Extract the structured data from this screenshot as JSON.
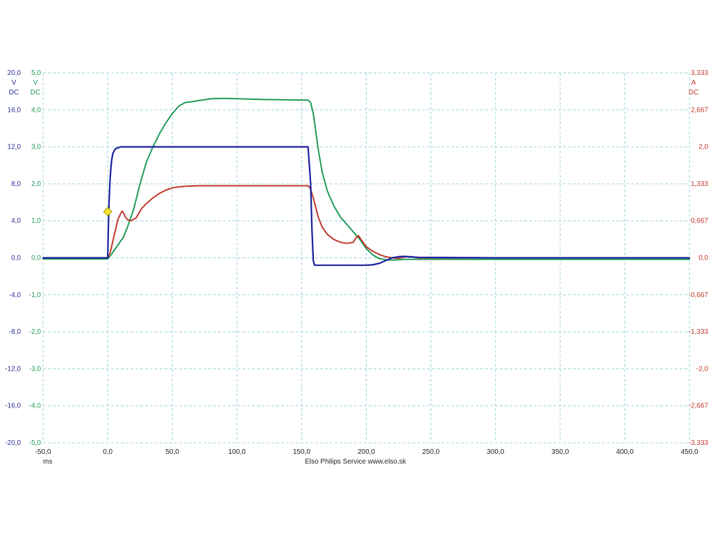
{
  "footer": {
    "credit": "Elso Philips Service  www.elso.sk"
  },
  "chart_data": {
    "type": "line",
    "title": "",
    "grid": true,
    "grid_color": "#9ed3e0",
    "xlabel": "ms",
    "xlim": [
      -50,
      450
    ],
    "x_ticks": [
      "-50,0",
      "0,0",
      "50,0",
      "100,0",
      "150,0",
      "200,0",
      "250,0",
      "300,0",
      "350,0",
      "400,0",
      "450,0"
    ],
    "axes": [
      {
        "id": "blue",
        "side": "left-outer",
        "color": "#2b2f9c",
        "unit": "V",
        "coupling": "DC",
        "range": [
          -20,
          20
        ],
        "ticks": [
          "20,0",
          "16,0",
          "12,0",
          "8,0",
          "4,0",
          "0,0",
          "-4,0",
          "-8,0",
          "-12,0",
          "-16,0",
          "-20,0"
        ]
      },
      {
        "id": "green",
        "side": "left-inner",
        "color": "#1f9a57",
        "unit": "V",
        "coupling": "DC",
        "range": [
          -5,
          5
        ],
        "ticks": [
          "5,0",
          "4,0",
          "3,0",
          "2,0",
          "1,0",
          "0,0",
          "-1,0",
          "-2,0",
          "-3,0",
          "-4,0",
          "-5,0"
        ]
      },
      {
        "id": "red",
        "side": "right",
        "color": "#c0392b",
        "unit": "A",
        "coupling": "DC",
        "range": [
          -3.333,
          3.333
        ],
        "ticks": [
          "3,333",
          "2,667",
          "2,0",
          "1,333",
          "0,667",
          "0,0",
          "-0,667",
          "-1,333",
          "-2,0",
          "-2,667",
          "-3,333"
        ]
      }
    ],
    "series": [
      {
        "id": "blue",
        "axis": "blue",
        "color": "#1a1f9e",
        "x": [
          -50,
          -2,
          -1,
          0,
          0.5,
          1,
          1.5,
          2,
          2.5,
          3,
          4,
          6,
          10,
          20,
          50,
          100,
          155,
          157,
          158,
          159,
          160,
          162,
          180,
          200,
          205,
          210,
          215,
          220,
          225,
          230,
          240,
          300,
          450
        ],
        "y": [
          0,
          0,
          0,
          0,
          3,
          5.8,
          7.5,
          8.8,
          9.8,
          10.5,
          11.3,
          11.8,
          12,
          12,
          12,
          12,
          12,
          8,
          3,
          -0.3,
          -0.8,
          -0.8,
          -0.8,
          -0.8,
          -0.75,
          -0.6,
          -0.3,
          0,
          0.12,
          0.15,
          0.05,
          0,
          0
        ]
      },
      {
        "id": "green",
        "axis": "green",
        "color": "#1f9a57",
        "x": [
          -50,
          0,
          2,
          5,
          8,
          10,
          12,
          15,
          20,
          25,
          30,
          35,
          40,
          45,
          50,
          55,
          60,
          65,
          70,
          80,
          90,
          100,
          120,
          140,
          155,
          157,
          159,
          161,
          163,
          166,
          170,
          175,
          180,
          185,
          190,
          195,
          200,
          205,
          210,
          215,
          220,
          225,
          230,
          240,
          300,
          450
        ],
        "y": [
          -0.03,
          -0.03,
          0.05,
          0.2,
          0.35,
          0.45,
          0.55,
          0.8,
          1.3,
          2.0,
          2.6,
          3.0,
          3.35,
          3.65,
          3.9,
          4.1,
          4.2,
          4.22,
          4.25,
          4.3,
          4.31,
          4.3,
          4.28,
          4.27,
          4.26,
          4.2,
          3.9,
          3.4,
          2.9,
          2.3,
          1.8,
          1.4,
          1.1,
          0.9,
          0.7,
          0.5,
          0.25,
          0.08,
          -0.02,
          -0.05,
          -0.06,
          -0.05,
          -0.04,
          -0.04,
          -0.04,
          -0.04
        ]
      },
      {
        "id": "red",
        "axis": "red",
        "color": "#c0392b",
        "x": [
          -50,
          0,
          2,
          5,
          8,
          11,
          12,
          14,
          16,
          18,
          20,
          22,
          24,
          26,
          30,
          35,
          40,
          45,
          50,
          55,
          60,
          70,
          80,
          100,
          130,
          155,
          157,
          159,
          161,
          163,
          166,
          170,
          175,
          180,
          185,
          190,
          192,
          194,
          196,
          198,
          200,
          205,
          210,
          215,
          220,
          225,
          230,
          235,
          240,
          300,
          450
        ],
        "y": [
          0,
          0,
          0.1,
          0.4,
          0.7,
          0.84,
          0.82,
          0.72,
          0.68,
          0.67,
          0.69,
          0.72,
          0.8,
          0.88,
          0.98,
          1.08,
          1.16,
          1.22,
          1.26,
          1.28,
          1.29,
          1.3,
          1.3,
          1.3,
          1.3,
          1.3,
          1.24,
          1.08,
          0.9,
          0.72,
          0.55,
          0.42,
          0.33,
          0.28,
          0.26,
          0.28,
          0.36,
          0.4,
          0.33,
          0.26,
          0.2,
          0.12,
          0.06,
          0.02,
          0.0,
          -0.01,
          0.02,
          0.02,
          0.0,
          0.0,
          0.0
        ]
      }
    ],
    "trigger_marker": {
      "x": 0,
      "value": 5,
      "axis": "blue",
      "color": "#f3e22e",
      "stroke": "#a79a00"
    }
  }
}
